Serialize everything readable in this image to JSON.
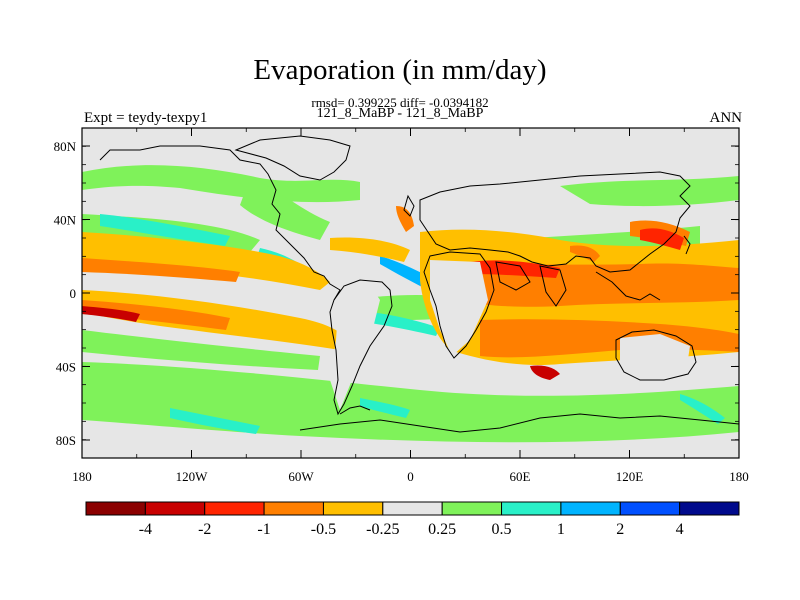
{
  "title": "Evaporation (in mm/day)",
  "stats": "rmsd= 0.399225 diff= -0.0394182",
  "case_label": "121_8_MaBP - 121_8_MaBP",
  "left_label": "Expt = teydy-texpy1",
  "right_label": "ANN",
  "lat_ticks": [
    "80N",
    "40N",
    "0",
    "40S",
    "80S"
  ],
  "lon_ticks": [
    "180",
    "120W",
    "60W",
    "0",
    "60E",
    "120E",
    "180"
  ],
  "colorbar": {
    "colors": [
      "#8b0000",
      "#c80000",
      "#ff2400",
      "#ff7f00",
      "#ffbf00",
      "#e6e6e6",
      "#7ff25a",
      "#29f0c8",
      "#00b4ff",
      "#0050ff",
      "#000a8c"
    ],
    "labels": [
      "-4",
      "-2",
      "-1",
      "-0.5",
      "-0.25",
      "0.25",
      "0.5",
      "1",
      "2",
      "4"
    ]
  }
}
